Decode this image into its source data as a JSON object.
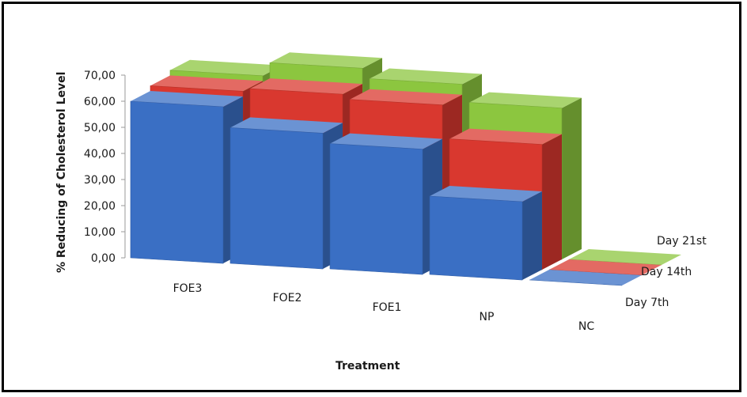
{
  "chart_data": {
    "type": "bar",
    "subtype": "3d-column",
    "title": "",
    "xlabel": "Treatment",
    "ylabel": "% Reducing of Cholesterol Level",
    "categories": [
      "FOE3",
      "FOE2",
      "FOE1",
      "NP",
      "NC"
    ],
    "ylim": [
      0,
      70
    ],
    "yticks": [
      "0,00",
      "10,00",
      "20,00",
      "30,00",
      "40,00",
      "50,00",
      "60,00",
      "70,00"
    ],
    "series": [
      {
        "name": "Day 7th",
        "color": "#3a6fc4",
        "values": [
          60,
          52,
          48,
          30,
          0
        ]
      },
      {
        "name": "Day 14th",
        "color": "#d9382f",
        "values": [
          62,
          63,
          61,
          48,
          0
        ]
      },
      {
        "name": "Day 21st",
        "color": "#8cc63f",
        "values": [
          64,
          69,
          65,
          58,
          0
        ]
      }
    ],
    "legend_position": "right (depth labels)"
  }
}
